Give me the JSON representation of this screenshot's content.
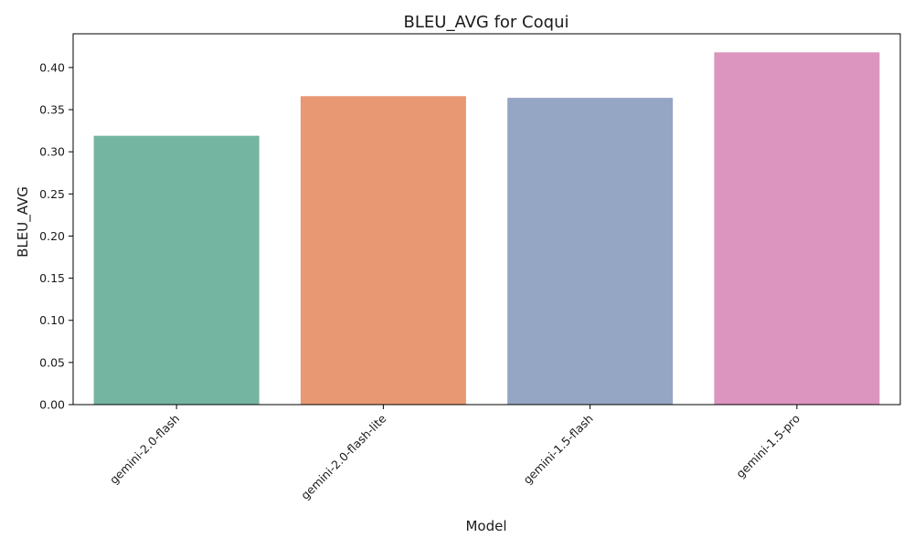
{
  "chart_data": {
    "type": "bar",
    "title": "BLEU_AVG for Coqui",
    "xlabel": "Model",
    "ylabel": "BLEU_AVG",
    "categories": [
      "gemini-2.0-flash",
      "gemini-2.0-flash-lite",
      "gemini-1.5-flash",
      "gemini-1.5-pro"
    ],
    "values": [
      0.319,
      0.366,
      0.364,
      0.418
    ],
    "colors": [
      "#73b5a0",
      "#e99874",
      "#95a5c4",
      "#dc95bf"
    ],
    "ylim": [
      0,
      0.44
    ],
    "yticks": [
      0.0,
      0.05,
      0.1,
      0.15,
      0.2,
      0.25,
      0.3,
      0.35,
      0.4
    ],
    "ytick_labels": [
      "0.00",
      "0.05",
      "0.10",
      "0.15",
      "0.20",
      "0.25",
      "0.30",
      "0.35",
      "0.40"
    ],
    "grid": false,
    "legend": "none"
  }
}
